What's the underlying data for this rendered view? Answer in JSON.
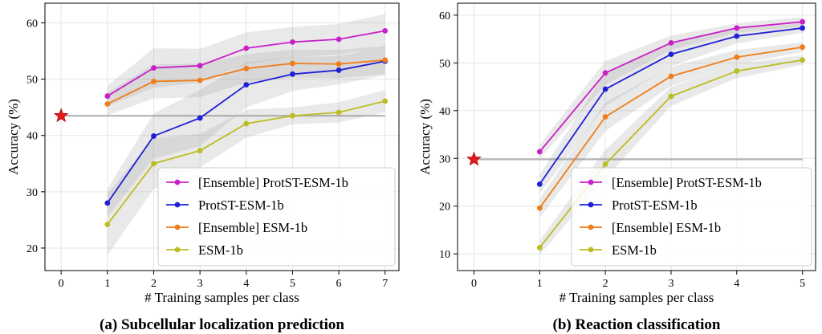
{
  "chart_data": [
    {
      "type": "line",
      "caption": "(a) Subcellular localization prediction",
      "xlabel": "# Training samples per class",
      "ylabel": "Accuracy (%)",
      "xlim": [
        -0.35,
        7.3
      ],
      "ylim": [
        16,
        63.5
      ],
      "xticks": [
        0,
        1,
        2,
        3,
        4,
        5,
        6,
        7
      ],
      "yticks": [
        20,
        30,
        40,
        50,
        60
      ],
      "grid": true,
      "legend_position": "lower-right",
      "x": [
        1,
        2,
        3,
        4,
        5,
        6,
        7
      ],
      "baseline": {
        "x": 0,
        "value": 43.5,
        "marker": "star",
        "color": "#e31a1c",
        "line_color": "#b3b3b3"
      },
      "series": [
        {
          "name": "[Ensemble] ProtST-ESM-1b",
          "color": "#c81fc9",
          "values": [
            47.0,
            52.0,
            52.4,
            55.5,
            56.6,
            57.1,
            58.6
          ],
          "band": [
            1.8,
            3.5,
            3.0,
            2.8,
            2.7,
            2.7,
            3.0
          ]
        },
        {
          "name": "ProtST-ESM-1b",
          "color": "#1f1fd6",
          "values": [
            28.0,
            39.9,
            43.1,
            49.0,
            50.9,
            51.6,
            53.2
          ],
          "band": [
            2.5,
            4.0,
            5.0,
            4.0,
            3.0,
            2.5,
            2.5
          ]
        },
        {
          "name": "[Ensemble] ESM-1b",
          "color": "#f07d1a",
          "values": [
            45.6,
            49.6,
            49.8,
            51.9,
            52.8,
            52.7,
            53.4
          ],
          "band": [
            2.0,
            3.0,
            3.0,
            2.5,
            2.5,
            2.5,
            2.5
          ]
        },
        {
          "name": "ESM-1b",
          "color": "#bcbd22",
          "values": [
            24.2,
            35.0,
            37.3,
            42.1,
            43.5,
            44.1,
            46.1
          ],
          "band": [
            5.5,
            4.5,
            3.0,
            2.5,
            1.5,
            1.8,
            2.0
          ]
        }
      ]
    },
    {
      "type": "line",
      "caption": "(b) Reaction classification",
      "xlabel": "# Training samples per class",
      "ylabel": "Accuracy (%)",
      "xlim": [
        -0.25,
        5.2
      ],
      "ylim": [
        6.5,
        62.5
      ],
      "xticks": [
        0,
        1,
        2,
        3,
        4,
        5
      ],
      "yticks": [
        10,
        20,
        30,
        40,
        50,
        60
      ],
      "grid": true,
      "legend_position": "lower-right",
      "x": [
        1,
        2,
        3,
        4,
        5
      ],
      "baseline": {
        "x": 0,
        "value": 29.8,
        "marker": "star",
        "color": "#e31a1c",
        "line_color": "#b3b3b3"
      },
      "series": [
        {
          "name": "[Ensemble] ProtST-ESM-1b",
          "color": "#c81fc9",
          "values": [
            31.4,
            47.9,
            54.2,
            57.3,
            58.6
          ],
          "band": [
            1.5,
            2.5,
            1.5,
            1.0,
            1.0
          ]
        },
        {
          "name": "ProtST-ESM-1b",
          "color": "#1f1fd6",
          "values": [
            24.6,
            44.5,
            51.8,
            55.6,
            57.3
          ],
          "band": [
            2.0,
            3.5,
            2.5,
            1.5,
            1.0
          ]
        },
        {
          "name": "[Ensemble] ESM-1b",
          "color": "#f07d1a",
          "values": [
            19.6,
            38.7,
            47.2,
            51.2,
            53.3
          ],
          "band": [
            2.0,
            3.0,
            2.0,
            1.5,
            1.0
          ]
        },
        {
          "name": "ESM-1b",
          "color": "#bcbd22",
          "values": [
            11.3,
            28.8,
            43.0,
            48.3,
            50.6
          ],
          "band": [
            1.5,
            3.0,
            2.0,
            1.5,
            1.0
          ]
        }
      ]
    }
  ]
}
